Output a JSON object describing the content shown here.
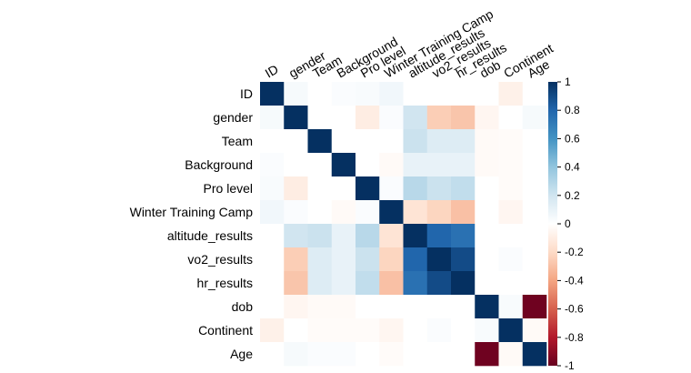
{
  "chart_data": {
    "type": "heatmap",
    "title": "",
    "variables": [
      "ID",
      "gender",
      "Team",
      "Background",
      "Pro level",
      "Winter Training Camp",
      "altitude_results",
      "vo2_results",
      "hr_results",
      "dob",
      "Continent",
      "Age"
    ],
    "matrix": [
      [
        1.0,
        0.04,
        0.0,
        0.02,
        0.03,
        0.06,
        0.0,
        0.0,
        0.0,
        0.0,
        -0.08,
        0.0
      ],
      [
        0.04,
        1.0,
        0.0,
        0.0,
        -0.1,
        0.02,
        0.2,
        -0.25,
        -0.28,
        -0.05,
        0.0,
        0.04
      ],
      [
        0.0,
        0.0,
        1.0,
        0.0,
        0.0,
        0.0,
        0.22,
        0.15,
        0.15,
        -0.03,
        -0.02,
        0.0
      ],
      [
        0.02,
        0.0,
        0.0,
        1.0,
        0.0,
        -0.03,
        0.1,
        0.1,
        0.1,
        -0.03,
        -0.02,
        0.0
      ],
      [
        0.03,
        -0.1,
        0.0,
        0.0,
        1.0,
        0.02,
        0.28,
        0.22,
        0.25,
        0.0,
        -0.02,
        0.0
      ],
      [
        0.06,
        0.02,
        0.0,
        -0.03,
        0.02,
        1.0,
        -0.15,
        -0.22,
        -0.3,
        0.0,
        -0.05,
        0.0
      ],
      [
        0.0,
        0.2,
        0.22,
        0.1,
        0.28,
        -0.15,
        1.0,
        0.8,
        0.75,
        0.0,
        0.0,
        0.0
      ],
      [
        0.0,
        -0.25,
        0.15,
        0.1,
        0.22,
        -0.22,
        0.8,
        1.0,
        0.9,
        0.0,
        0.02,
        0.0
      ],
      [
        0.0,
        -0.28,
        0.15,
        0.1,
        0.25,
        -0.3,
        0.75,
        0.9,
        1.0,
        0.0,
        0.0,
        0.0
      ],
      [
        0.0,
        -0.05,
        -0.03,
        -0.03,
        0.0,
        0.0,
        0.0,
        0.0,
        0.0,
        1.0,
        0.03,
        -0.98
      ],
      [
        -0.08,
        0.0,
        -0.02,
        -0.02,
        -0.02,
        -0.05,
        0.0,
        0.02,
        0.0,
        0.03,
        1.0,
        -0.03
      ],
      [
        0.0,
        0.04,
        0.02,
        0.02,
        0.0,
        -0.02,
        0.0,
        0.0,
        0.0,
        -0.98,
        -0.03,
        1.0
      ]
    ],
    "x_labels": [
      "ID",
      "gender",
      "Team",
      "Background",
      "Pro level",
      "Winter Training Camp",
      "altitude_results",
      "vo2_results",
      "hr_results",
      "dob",
      "Continent",
      "Age"
    ],
    "y_labels": [
      "ID",
      "gender",
      "Team",
      "Background",
      "Pro level",
      "Winter Training Camp",
      "altitude_results",
      "vo2_results",
      "hr_results",
      "dob",
      "Continent",
      "Age"
    ],
    "colorbar": {
      "range": [
        -1,
        1
      ],
      "ticks": [
        "1",
        "0.8",
        "0.6",
        "0.4",
        "0.2",
        "0",
        "-0.2",
        "-0.4",
        "-0.6",
        "-0.8",
        "-1"
      ],
      "colors": [
        "#67001F",
        "#B2182B",
        "#D6604D",
        "#F4A582",
        "#FDDBC7",
        "#FFFFFF",
        "#D1E5F0",
        "#92C5DE",
        "#4393C3",
        "#2166AC",
        "#053061"
      ]
    },
    "grid": false,
    "legend_position": "right"
  }
}
